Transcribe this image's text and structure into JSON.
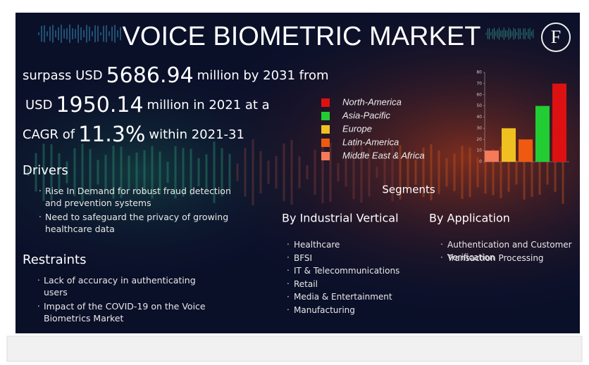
{
  "header": {
    "title": "VOICE BIOMETRIC MARKET",
    "logo": "F"
  },
  "headline": [
    {
      "before": "surpass USD",
      "figure": "5686.94",
      "after": "million by 2031 from"
    },
    {
      "before": "USD",
      "figure": "1950.14",
      "after": "million in 2021 at a"
    },
    {
      "before": "CAGR of",
      "figure": "11.3%",
      "after": "within 2021-31"
    }
  ],
  "drivers": {
    "title": "Drivers",
    "items": [
      "Rise In Demand for robust fraud detection and prevention systems",
      "Need to safeguard the privacy of growing healthcare data"
    ]
  },
  "restraints": {
    "title": "Restraints",
    "items": [
      "Lack of accuracy in authenticating users",
      "Impact of the COVID-19 on the Voice Biometrics Market"
    ]
  },
  "segments": {
    "title": "Segments",
    "vertical": {
      "title": "By Industrial Vertical",
      "items": [
        "Healthcare",
        "BFSI",
        "IT & Telecommunications",
        "Retail",
        "Media & Entertainment",
        "Manufacturing"
      ]
    },
    "application": {
      "title": "By Application",
      "items": [
        "Authentication and Customer Verification",
        "Transaction Processing"
      ]
    }
  },
  "chart_data": {
    "type": "bar",
    "categories": [
      "Middle East & Africa",
      "Europe",
      "Latin-America",
      "Asia-Pacific",
      "North-America"
    ],
    "values": [
      10,
      30,
      20,
      50,
      70
    ],
    "colors": [
      "#f47a5a",
      "#f0c020",
      "#ef5a10",
      "#22cc33",
      "#dd1111"
    ],
    "ylim": [
      0,
      80
    ],
    "yticks": [
      0,
      10,
      20,
      30,
      40,
      50,
      60,
      70,
      80
    ]
  }
}
